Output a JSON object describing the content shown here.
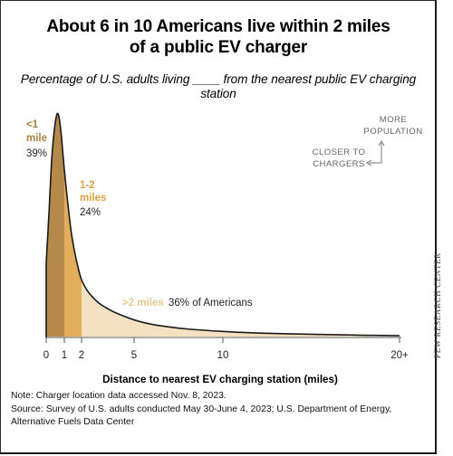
{
  "title_line1": "About 6 in 10 Americans live within 2 miles",
  "title_line2": "of a public EV charger",
  "subtitle": "Percentage of U.S. adults living ____ from the nearest public EV charging station",
  "note_line1": "Note: Charger location data accessed Nov. 8, 2023.",
  "note_line2": "Source: Survey of U.S. adults conducted May 30-June 4, 2023; U.S. Department of Energy,",
  "note_line3": "Alternative Fuels Data Center",
  "side_credit": "PEW RESEARCH CENTER",
  "annotations": {
    "more_population_1": "MORE",
    "more_population_2": "POPULATION",
    "closer_1": "CLOSER TO",
    "closer_2": "CHARGERS"
  },
  "colors": {
    "band_lt1": "#b5894a",
    "band_1to2": "#e3ad5a",
    "band_gt2": "#f3e1c1",
    "label_lt1": "#a9803f",
    "label_1to2": "#dea23f",
    "label_gt2": "#e8c88e",
    "curve": "#1a1a1a",
    "axis": "#555555",
    "annotation": "#666666"
  },
  "chart_data": {
    "type": "area",
    "xlabel": "Distance to nearest EV charging station (miles)",
    "ylabel": "",
    "xlim": [
      0,
      20
    ],
    "x_ticks": [
      {
        "value": 0,
        "label": "0"
      },
      {
        "value": 1,
        "label": "1"
      },
      {
        "value": 2,
        "label": "2"
      },
      {
        "value": 5,
        "label": "5"
      },
      {
        "value": 10,
        "label": "10"
      },
      {
        "value": 20,
        "label": "20+"
      }
    ],
    "grid": false,
    "bands": [
      {
        "range": [
          0,
          1
        ],
        "label_line1": "<1",
        "label_line2": "mile",
        "value_label": "39%",
        "value": 39
      },
      {
        "range": [
          1,
          2
        ],
        "label_line1": "1-2",
        "label_line2": "miles",
        "value_label": "24%",
        "value": 24
      },
      {
        "range": [
          2,
          20
        ],
        "label_line1": ">2 miles",
        "value_label": "36% of Americans",
        "value": 36
      }
    ],
    "density_curve": {
      "x": [
        0,
        0.15,
        0.3,
        0.45,
        0.6,
        0.72,
        0.85,
        1.0,
        1.2,
        1.4,
        1.6,
        1.8,
        2.0,
        2.3,
        2.6,
        3.0,
        3.5,
        4.0,
        5.0,
        6.0,
        7.0,
        8.0,
        10.0,
        12.0,
        14.0,
        16.0,
        18.0,
        20.0
      ],
      "y": [
        33,
        55,
        79,
        93,
        100,
        98,
        89,
        75,
        60,
        47,
        38,
        31,
        25.5,
        21,
        18,
        15,
        12.5,
        10.5,
        7.5,
        5.5,
        4.3,
        3.4,
        2.3,
        1.6,
        1.2,
        0.9,
        0.6,
        0.4
      ]
    }
  }
}
